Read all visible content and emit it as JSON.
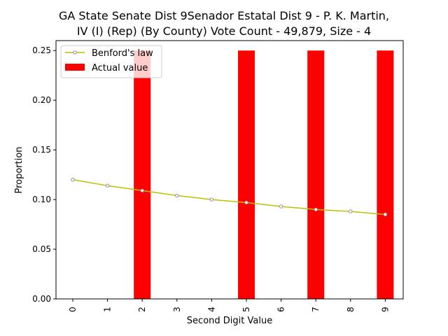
{
  "chart_data": {
    "type": "bar",
    "title": "GA State Senate Dist 9Senador Estatal Dist 9 - P. K. Martin, IV (I) (Rep) (By County) Vote Count - 49,879, Size - 4",
    "title_lines": [
      "GA State Senate Dist 9Senador Estatal Dist 9 - P. K. Martin,",
      "IV (I) (Rep) (By County) Vote Count - 49,879, Size - 4"
    ],
    "xlabel": "Second Digit Value",
    "ylabel": "Proportion",
    "categories": [
      "0",
      "1",
      "2",
      "3",
      "4",
      "5",
      "6",
      "7",
      "8",
      "9"
    ],
    "ylim": [
      0,
      0.26
    ],
    "yticks": [
      "0.00",
      "0.05",
      "0.10",
      "0.15",
      "0.20",
      "0.25"
    ],
    "yticks_values": [
      0,
      0.05,
      0.1,
      0.15,
      0.2,
      0.25
    ],
    "grid": false,
    "legend_position": "top-left",
    "series": [
      {
        "name": "Benford's law",
        "kind": "line",
        "color": "#bfbf00",
        "marker_color": "#8c8ca6",
        "values": [
          0.12,
          0.114,
          0.109,
          0.104,
          0.1,
          0.097,
          0.093,
          0.09,
          0.088,
          0.085
        ]
      },
      {
        "name": "Actual value",
        "kind": "bar",
        "color": "#ff0000",
        "values": [
          0,
          0,
          0.25,
          0,
          0,
          0.25,
          0,
          0.25,
          0,
          0.25
        ]
      }
    ]
  }
}
